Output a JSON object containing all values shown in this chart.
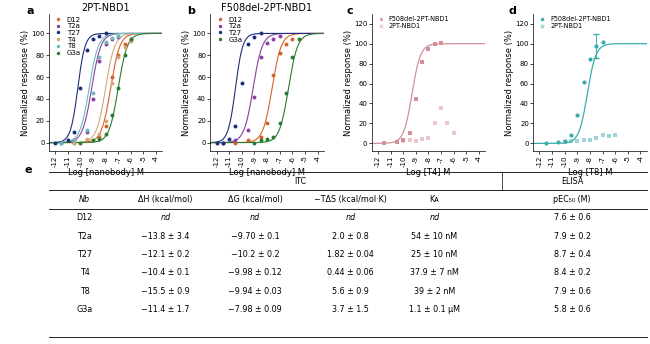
{
  "title_a": "2PT-NBD1",
  "title_b": "F508del-2PT-NBD1",
  "xlabel_ab": "Log [nanobody] M",
  "xlabel_c": "Log [T4] M",
  "xlabel_d": "Log [T8] M",
  "ylabel": "Normalized response (%)",
  "colors": {
    "D12": "#D4622A",
    "T2a": "#8B3FA0",
    "T27": "#1C2F7C",
    "T4": "#D4A878",
    "T8": "#6ABABA",
    "G3a": "#2A7A30"
  },
  "ec50_a": {
    "D12": -7.6,
    "T2a": -9.1,
    "T27": -10.2,
    "T4": -8.0,
    "T8": -9.3,
    "G3a": -7.0
  },
  "ec50_b": {
    "D12": -7.6,
    "T2a": -9.1,
    "T27": -10.5,
    "T4": -8.0,
    "T8": -9.3,
    "G3a": -6.3
  },
  "panel_c_color": "#D4909A",
  "panel_c_ec50": -9.3,
  "panel_c_label1": "F508del-2PT-NBD1",
  "panel_c_label2": "2PT-NBD1",
  "panel_d_color": "#3AACAC",
  "panel_d_ec50": -8.2,
  "panel_d_label1": "F508del-2PT-NBD1",
  "panel_d_label2": "2PT-NBD1",
  "table_rows": [
    [
      "D12",
      "nd",
      "nd",
      "nd",
      "nd",
      "7.6 ± 0.6"
    ],
    [
      "T2a",
      "−13.8 ± 3.4",
      "−9.70 ± 0.1",
      "2.0 ± 0.8",
      "54 ± 10 nM",
      "7.9 ± 0.2"
    ],
    [
      "T27",
      "−12.1 ± 0.2",
      "−10.2 ± 0.2",
      "1.82 ± 0.04",
      "25 ± 10 nM",
      "8.7 ± 0.4"
    ],
    [
      "T4",
      "−10.4 ± 0.1",
      "−9.98 ± 0.12",
      "0.44 ± 0.06",
      "37.9 ± 7 nM",
      "8.4 ± 0.2"
    ],
    [
      "T8",
      "−15.5 ± 0.9",
      "−9.94 ± 0.03",
      "5.6 ± 0.9",
      "39 ± 2 nM",
      "7.9 ± 0.6"
    ],
    [
      "G3a",
      "−11.4 ± 1.7",
      "−7.98 ± 0.09",
      "3.7 ± 1.5",
      "1.1 ± 0.1 μM",
      "5.8 ± 0.6"
    ]
  ],
  "table_col_headers": [
    "Nb",
    "ΔH (kcal/mol)",
    "ΔG (kcal/mol)",
    "−TΔS (kcal/mol·K)",
    "Kᴀ",
    "pEC₅₀ (M)"
  ],
  "axis_label_fontsize": 6.0,
  "tick_fontsize": 5.0,
  "legend_fontsize": 5.0,
  "title_fontsize": 7.0,
  "table_fontsize": 5.8,
  "panel_label_fontsize": 8
}
